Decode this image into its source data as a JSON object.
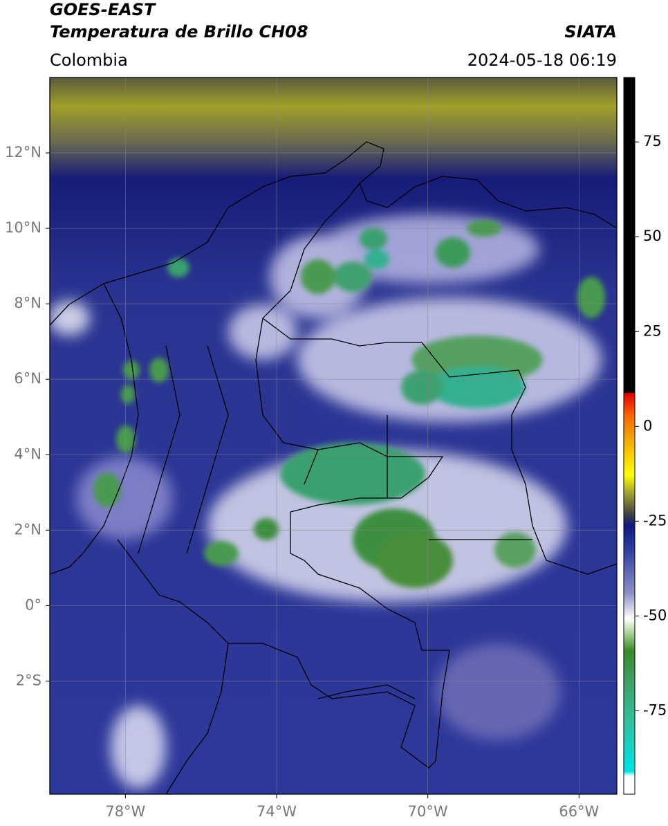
{
  "header": {
    "title_line1": "GOES-EAST",
    "title_line2": "Temperatura de Brillo CH08",
    "region": "Colombia",
    "source": "SIATA",
    "datetime": "2024-05-18 06:19"
  },
  "map": {
    "xlim": [
      -80,
      -65
    ],
    "ylim": [
      -5,
      14
    ],
    "grid": true,
    "xticks": [
      {
        "value": -78,
        "label": "78°W"
      },
      {
        "value": -74,
        "label": "74°W"
      },
      {
        "value": -70,
        "label": "70°W"
      },
      {
        "value": -66,
        "label": "66°W"
      }
    ],
    "yticks": [
      {
        "value": 12,
        "label": "12°N"
      },
      {
        "value": 10,
        "label": "10°N"
      },
      {
        "value": 8,
        "label": "8°N"
      },
      {
        "value": 6,
        "label": "6°N"
      },
      {
        "value": 4,
        "label": "4°N"
      },
      {
        "value": 2,
        "label": "2°N"
      },
      {
        "value": 0,
        "label": "0°"
      },
      {
        "value": -2,
        "label": "2°S"
      }
    ]
  },
  "colorbar": {
    "lim": [
      -97,
      92
    ],
    "ticks": [
      75,
      50,
      25,
      0,
      -25,
      -50,
      -75
    ]
  }
}
